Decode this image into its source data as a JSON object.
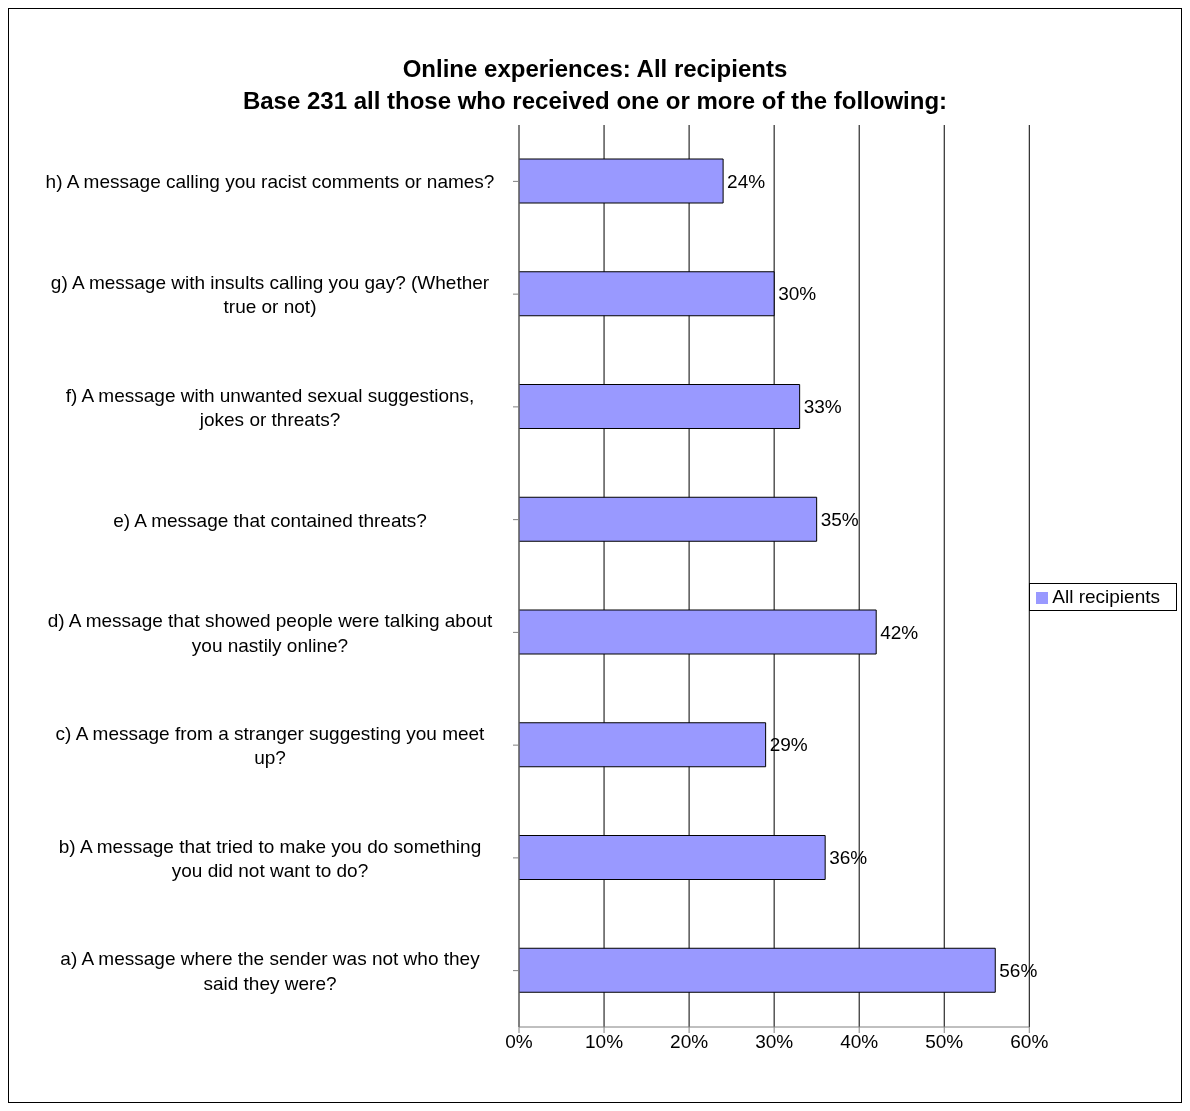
{
  "chart_data": {
    "type": "bar",
    "orientation": "horizontal",
    "title": "Online experiences: All recipients",
    "subtitle": "Base 231 all those who received one or more of the following:",
    "categories": [
      "h)  A message calling you racist comments or names?",
      "g)  A message with insults calling you gay? (Whether true or not)",
      "f)  A message with unwanted sexual suggestions, jokes or threats?",
      "e)  A message that contained threats?",
      "d)  A message that showed people were talking about you nastily online?",
      "c)  A message from a stranger suggesting you meet up?",
      "b)  A message that tried to make you do something you did not want to do?",
      "a)  A  message where the sender was not who they said they were?"
    ],
    "series": [
      {
        "name": "All recipients",
        "color": "#9999ff",
        "values": [
          24,
          30,
          33,
          35,
          42,
          29,
          36,
          56
        ],
        "value_labels": [
          "24%",
          "30%",
          "33%",
          "35%",
          "42%",
          "29%",
          "36%",
          "56%"
        ]
      }
    ],
    "xlim": [
      0,
      60
    ],
    "xticks": [
      {
        "value": 0,
        "label": "0%"
      },
      {
        "value": 10,
        "label": "10%"
      },
      {
        "value": 20,
        "label": "20%"
      },
      {
        "value": 30,
        "label": "30%"
      },
      {
        "value": 40,
        "label": "40%"
      },
      {
        "value": 50,
        "label": "50%"
      },
      {
        "value": 60,
        "label": "60%"
      }
    ],
    "grid": "x",
    "legend": "right"
  }
}
